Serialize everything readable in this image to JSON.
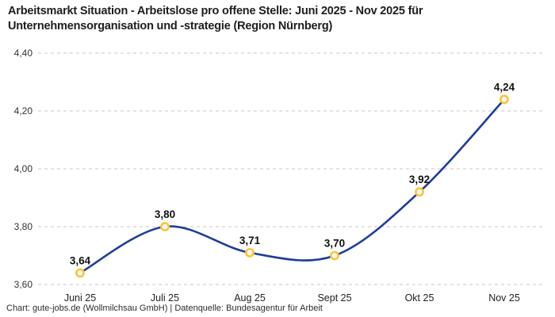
{
  "header": {
    "title": "Arbeitsmarkt Situation - Arbeitslose pro offene Stelle: Juni 2025 - Nov 2025 für Unternehmensorganisation und -strategie (Region Nürnberg)"
  },
  "footer": {
    "attribution": "Chart: gute-jobs.de (Wollmilchsau GmbH) | Datenquelle: Bundesagentur für Arbeit"
  },
  "chart_data": {
    "type": "line",
    "title": "Arbeitsmarkt Situation - Arbeitslose pro offene Stelle: Juni 2025 - Nov 2025 für Unternehmensorganisation und -strategie (Region Nürnberg)",
    "categories": [
      "Juni 25",
      "Juli 25",
      "Aug 25",
      "Sept 25",
      "Okt 25",
      "Nov 25"
    ],
    "values": [
      3.64,
      3.8,
      3.71,
      3.7,
      3.92,
      4.24
    ],
    "point_labels": [
      "3,64",
      "3,80",
      "3,71",
      "3,70",
      "3,92",
      "4,24"
    ],
    "ytick_values": [
      3.6,
      3.8,
      4.0,
      4.2,
      4.4
    ],
    "ytick_labels": [
      "3,60",
      "3,80",
      "4,00",
      "4,20",
      "4,40"
    ],
    "ylim": [
      3.6,
      4.4
    ],
    "xlabel": "",
    "ylabel": "",
    "grid": "horizontal-dashed",
    "legend": "none",
    "curve": "smooth",
    "colors": {
      "line": "#1f3d99",
      "marker_ring": "#ffc233",
      "marker_fill": "#ffffff",
      "gridline": "#c7c7c7",
      "title_text": "#1d1d1d",
      "background": "#ffffff"
    }
  }
}
